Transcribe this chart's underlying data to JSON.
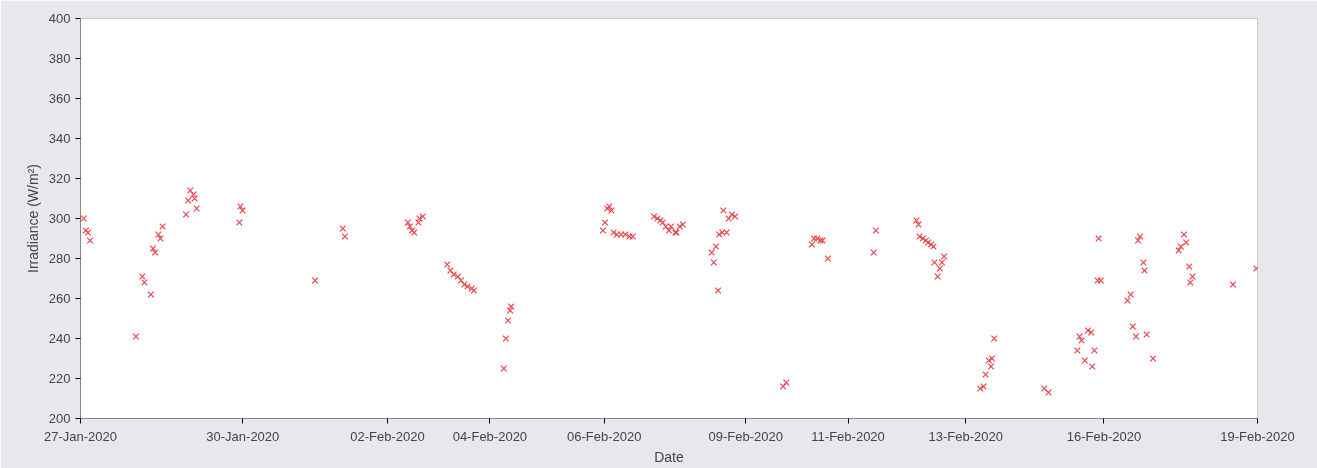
{
  "chart_data": {
    "type": "scatter",
    "xlabel": "Date",
    "ylabel": "Irradiance (W/m²)",
    "marker": "cross",
    "grid": false,
    "xlim": [
      "2020-01-27",
      "2020-02-19"
    ],
    "ylim": [
      200,
      400
    ],
    "xticks": [
      {
        "value": "2020-01-27",
        "label": "27-Jan-2020"
      },
      {
        "value": "2020-01-30T04:07",
        "label": "30-Jan-2020"
      },
      {
        "value": "2020-02-02",
        "label": "02-Feb-2020"
      },
      {
        "value": "2020-02-04",
        "label": "04-Feb-2020"
      },
      {
        "value": "2020-02-06T05:39",
        "label": "06-Feb-2020"
      },
      {
        "value": "2020-02-09",
        "label": "09-Feb-2020"
      },
      {
        "value": "2020-02-11",
        "label": "11-Feb-2020"
      },
      {
        "value": "2020-02-13T07:10",
        "label": "13-Feb-2020"
      },
      {
        "value": "2020-02-16",
        "label": "16-Feb-2020"
      },
      {
        "value": "2020-02-19",
        "label": "19-Feb-2020"
      }
    ],
    "yticks": [
      200,
      220,
      240,
      260,
      280,
      300,
      320,
      340,
      360,
      380,
      400
    ],
    "series": [
      {
        "color": "#e8434a",
        "x": [
          "2020-01-27T01:30",
          "2020-01-27T02:30",
          "2020-01-27T03:30",
          "2020-01-27T04:30",
          "2020-01-28T02:00",
          "2020-01-28T05:00",
          "2020-01-28T06:00",
          "2020-01-28T09:00",
          "2020-01-28T10:00",
          "2020-01-28T11:00",
          "2020-01-28T12:30",
          "2020-01-28T13:30",
          "2020-01-28T14:30",
          "2020-01-29T01:30",
          "2020-01-29T02:30",
          "2020-01-29T03:30",
          "2020-01-29T05:00",
          "2020-01-29T05:30",
          "2020-01-29T06:30",
          "2020-01-30T02:30",
          "2020-01-30T03:00",
          "2020-01-30T04:00",
          "2020-01-31T14:00",
          "2020-02-01T03:00",
          "2020-02-01T04:00",
          "2020-02-02T09:30",
          "2020-02-02T10:30",
          "2020-02-02T11:30",
          "2020-02-02T12:30",
          "2020-02-02T14:30",
          "2020-02-02T15:00",
          "2020-02-02T16:30",
          "2020-02-03T04:00",
          "2020-02-03T05:30",
          "2020-02-03T07:00",
          "2020-02-03T09:00",
          "2020-02-03T10:30",
          "2020-02-03T12:00",
          "2020-02-03T13:30",
          "2020-02-03T15:30",
          "2020-02-03T16:30",
          "2020-02-04T06:30",
          "2020-02-04T07:30",
          "2020-02-04T08:30",
          "2020-02-04T09:30",
          "2020-02-04T10:00",
          "2020-02-06T05:00",
          "2020-02-06T06:00",
          "2020-02-06T07:00",
          "2020-02-06T08:00",
          "2020-02-06T09:00",
          "2020-02-06T10:00",
          "2020-02-06T11:30",
          "2020-02-06T13:30",
          "2020-02-06T15:30",
          "2020-02-06T17:30",
          "2020-02-06T19:00",
          "2020-02-07T05:00",
          "2020-02-07T06:30",
          "2020-02-07T08:00",
          "2020-02-07T09:00",
          "2020-02-07T10:30",
          "2020-02-07T12:00",
          "2020-02-07T13:00",
          "2020-02-07T15:00",
          "2020-02-07T15:30",
          "2020-02-07T17:00",
          "2020-02-07T18:30",
          "2020-02-08T08:00",
          "2020-02-08T09:00",
          "2020-02-08T10:00",
          "2020-02-08T11:00",
          "2020-02-08T11:30",
          "2020-02-08T13:00",
          "2020-02-08T13:30",
          "2020-02-08T15:00",
          "2020-02-08T16:00",
          "2020-02-08T17:30",
          "2020-02-08T19:00",
          "2020-02-09T17:30",
          "2020-02-09T19:00",
          "2020-02-10T07:00",
          "2020-02-10T08:00",
          "2020-02-10T09:30",
          "2020-02-10T11:00",
          "2020-02-10T12:00",
          "2020-02-10T14:30",
          "2020-02-11T12:00",
          "2020-02-11T13:00",
          "2020-02-12T08:00",
          "2020-02-12T09:00",
          "2020-02-12T09:30",
          "2020-02-12T11:00",
          "2020-02-12T12:30",
          "2020-02-12T13:30",
          "2020-02-12T15:00",
          "2020-02-12T16:00",
          "2020-02-12T16:30",
          "2020-02-12T18:00",
          "2020-02-12T19:00",
          "2020-02-12T20:00",
          "2020-02-12T21:00",
          "2020-02-13T14:00",
          "2020-02-13T15:30",
          "2020-02-13T16:30",
          "2020-02-13T18:00",
          "2020-02-13T19:00",
          "2020-02-13T19:30",
          "2020-02-13T20:30",
          "2020-02-14T20:00",
          "2020-02-14T22:00",
          "2020-02-15T11:30",
          "2020-02-15T12:30",
          "2020-02-15T13:30",
          "2020-02-15T15:00",
          "2020-02-15T16:30",
          "2020-02-15T18:00",
          "2020-02-15T18:30",
          "2020-02-15T19:30",
          "2020-02-15T21:00",
          "2020-02-15T21:30",
          "2020-02-15T22:30",
          "2020-02-16T11:00",
          "2020-02-16T12:30",
          "2020-02-16T13:30",
          "2020-02-16T15:00",
          "2020-02-16T16:00",
          "2020-02-16T17:00",
          "2020-02-16T18:30",
          "2020-02-16T19:00",
          "2020-02-16T20:00",
          "2020-02-16T23:00",
          "2020-02-17T11:00",
          "2020-02-17T12:00",
          "2020-02-17T13:30",
          "2020-02-17T14:30",
          "2020-02-17T16:00",
          "2020-02-17T16:30",
          "2020-02-17T17:30",
          "2020-02-18T12:30",
          "2020-02-18T23:30"
        ],
        "values": [
          300,
          294,
          293,
          289,
          241,
          271,
          268,
          262,
          285,
          283,
          292,
          290,
          296,
          302,
          309,
          314,
          312,
          310,
          305,
          298,
          306,
          304,
          269,
          295,
          291,
          298,
          296,
          294,
          293,
          298,
          300,
          301,
          277,
          274,
          272,
          271,
          269,
          267,
          266,
          265,
          264,
          225,
          240,
          249,
          254,
          256,
          294,
          298,
          305,
          306,
          304,
          293,
          292,
          292,
          292,
          291,
          291,
          301,
          300,
          299,
          298,
          296,
          294,
          296,
          293,
          293,
          296,
          297,
          283,
          278,
          286,
          264,
          292,
          293,
          304,
          293,
          300,
          302,
          301,
          216,
          218,
          287,
          290,
          290,
          289,
          289,
          280,
          283,
          294,
          299,
          297,
          291,
          290,
          289,
          288,
          287,
          286,
          278,
          271,
          275,
          278,
          281,
          215,
          216,
          222,
          229,
          226,
          230,
          240,
          215,
          213,
          234,
          241,
          239,
          229,
          244,
          243,
          226,
          234,
          269,
          290,
          269,
          259,
          262,
          246,
          241,
          289,
          291,
          278,
          274,
          242,
          230,
          284,
          286,
          292,
          288,
          276,
          268,
          271,
          267,
          275
        ]
      }
    ]
  }
}
